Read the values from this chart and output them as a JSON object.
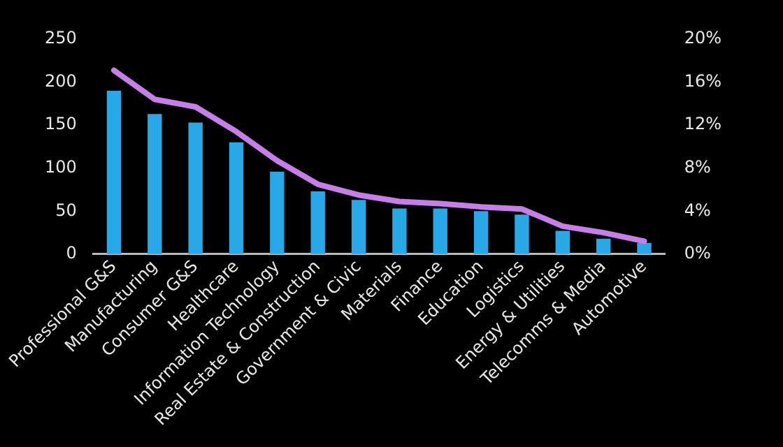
{
  "chart_data": {
    "type": "bar",
    "categories": [
      "Professional G&S",
      "Manufacturing",
      "Consumer G&S",
      "Healthcare",
      "Information Technology",
      "Real Estate & Construction",
      "Government & Civic",
      "Materials",
      "Finance",
      "Education",
      "Logistics",
      "Energy & Utilities",
      "Telecomms & Media",
      "Automotive"
    ],
    "series": [
      {
        "color": "#29a8e8",
        "values": [
          190,
          163,
          153,
          130,
          96,
          73,
          63,
          53,
          53,
          50,
          46,
          27,
          18,
          13
        ]
      },
      {
        "type": "line",
        "axis": "y2",
        "color": "#c77ee8",
        "values": [
          17.1,
          14.4,
          13.7,
          11.4,
          8.7,
          6.5,
          5.5,
          4.9,
          4.7,
          4.4,
          4.2,
          2.6,
          2.0,
          1.2
        ]
      }
    ],
    "ylim": [
      0,
      250
    ],
    "yticks": [
      0,
      50,
      100,
      150,
      200,
      250
    ],
    "y2lim": [
      0,
      20
    ],
    "y2ticks": [
      {
        "value": 0,
        "label": "0%"
      },
      {
        "value": 4,
        "label": "4%"
      },
      {
        "value": 8,
        "label": "8%"
      },
      {
        "value": 12,
        "label": "12%"
      },
      {
        "value": 16,
        "label": "16%"
      },
      {
        "value": 20,
        "label": "20%"
      }
    ],
    "grid": false,
    "legend": false
  }
}
